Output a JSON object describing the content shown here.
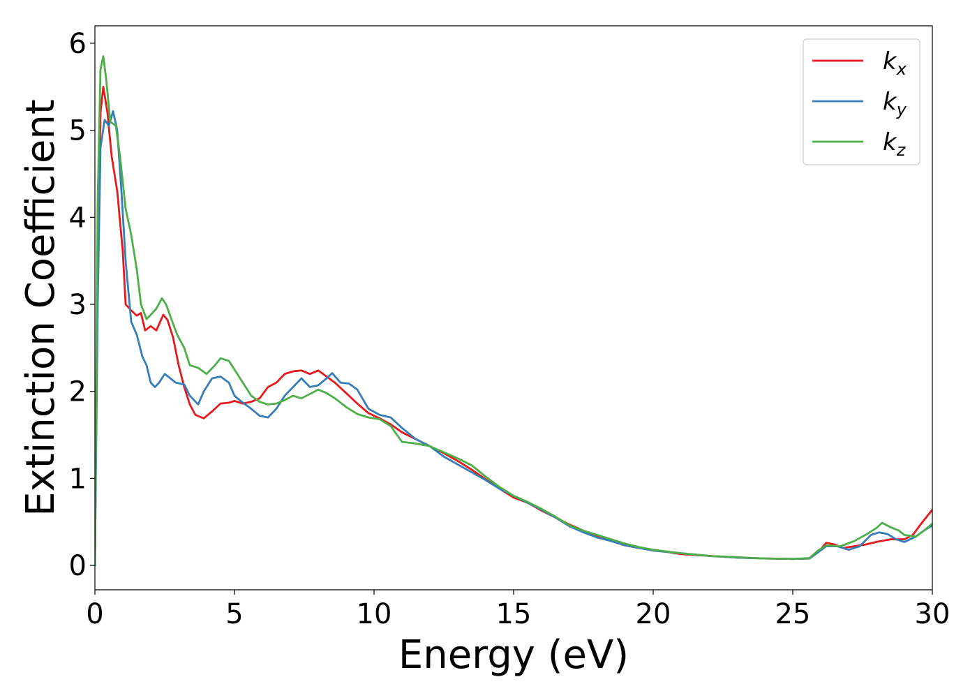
{
  "chart_data": {
    "type": "line",
    "title": "",
    "xlabel": "Energy (eV)",
    "ylabel": "Extinction Coefficient",
    "xlim": [
      0,
      30
    ],
    "ylim": [
      -0.28,
      6.2
    ],
    "xticks": [
      0,
      5,
      10,
      15,
      20,
      25,
      30
    ],
    "yticks": [
      0,
      1,
      2,
      3,
      4,
      5,
      6
    ],
    "grid": false,
    "legend_position": "top-right",
    "series": [
      {
        "name": "k_x",
        "label_base": "k",
        "label_sub": "x",
        "color": "#e41a1c",
        "points": [
          [
            0,
            0
          ],
          [
            0.1,
            3.5
          ],
          [
            0.2,
            5.2
          ],
          [
            0.3,
            5.5
          ],
          [
            0.45,
            5.2
          ],
          [
            0.6,
            4.7
          ],
          [
            0.8,
            4.3
          ],
          [
            1.0,
            3.6
          ],
          [
            1.1,
            3.0
          ],
          [
            1.3,
            2.93
          ],
          [
            1.5,
            2.87
          ],
          [
            1.65,
            2.9
          ],
          [
            1.8,
            2.7
          ],
          [
            2.0,
            2.75
          ],
          [
            2.2,
            2.7
          ],
          [
            2.45,
            2.88
          ],
          [
            2.6,
            2.82
          ],
          [
            2.8,
            2.62
          ],
          [
            3.0,
            2.3
          ],
          [
            3.2,
            2.05
          ],
          [
            3.4,
            1.85
          ],
          [
            3.6,
            1.73
          ],
          [
            3.9,
            1.69
          ],
          [
            4.2,
            1.77
          ],
          [
            4.5,
            1.86
          ],
          [
            4.8,
            1.87
          ],
          [
            5.0,
            1.89
          ],
          [
            5.3,
            1.86
          ],
          [
            5.6,
            1.88
          ],
          [
            5.9,
            1.92
          ],
          [
            6.2,
            2.05
          ],
          [
            6.5,
            2.1
          ],
          [
            6.8,
            2.2
          ],
          [
            7.1,
            2.23
          ],
          [
            7.4,
            2.24
          ],
          [
            7.7,
            2.2
          ],
          [
            8.0,
            2.24
          ],
          [
            8.3,
            2.17
          ],
          [
            8.6,
            2.1
          ],
          [
            9.0,
            1.98
          ],
          [
            9.4,
            1.86
          ],
          [
            9.8,
            1.75
          ],
          [
            10.2,
            1.69
          ],
          [
            10.6,
            1.62
          ],
          [
            11.0,
            1.53
          ],
          [
            11.5,
            1.45
          ],
          [
            12.0,
            1.37
          ],
          [
            12.5,
            1.29
          ],
          [
            13.0,
            1.2
          ],
          [
            13.5,
            1.1
          ],
          [
            14.0,
            0.99
          ],
          [
            14.5,
            0.88
          ],
          [
            15.0,
            0.78
          ],
          [
            15.5,
            0.72
          ],
          [
            16.0,
            0.63
          ],
          [
            16.5,
            0.55
          ],
          [
            17.0,
            0.47
          ],
          [
            17.5,
            0.4
          ],
          [
            18.0,
            0.33
          ],
          [
            18.5,
            0.28
          ],
          [
            19.0,
            0.23
          ],
          [
            19.5,
            0.2
          ],
          [
            20.0,
            0.18
          ],
          [
            21.0,
            0.13
          ],
          [
            22.0,
            0.11
          ],
          [
            23.0,
            0.09
          ],
          [
            24.0,
            0.08
          ],
          [
            25.0,
            0.075
          ],
          [
            25.6,
            0.08
          ],
          [
            25.9,
            0.15
          ],
          [
            26.2,
            0.26
          ],
          [
            26.5,
            0.24
          ],
          [
            26.8,
            0.2
          ],
          [
            27.2,
            0.22
          ],
          [
            27.6,
            0.24
          ],
          [
            28.0,
            0.27
          ],
          [
            28.5,
            0.3
          ],
          [
            29.0,
            0.3
          ],
          [
            29.3,
            0.35
          ],
          [
            29.6,
            0.48
          ],
          [
            30.0,
            0.64
          ]
        ]
      },
      {
        "name": "k_y",
        "label_base": "k",
        "label_sub": "y",
        "color": "#377eb8",
        "points": [
          [
            0,
            0
          ],
          [
            0.1,
            3.0
          ],
          [
            0.2,
            4.8
          ],
          [
            0.35,
            5.12
          ],
          [
            0.5,
            5.05
          ],
          [
            0.65,
            5.22
          ],
          [
            0.8,
            5.0
          ],
          [
            0.95,
            4.3
          ],
          [
            1.1,
            3.5
          ],
          [
            1.3,
            2.8
          ],
          [
            1.5,
            2.65
          ],
          [
            1.7,
            2.4
          ],
          [
            1.85,
            2.3
          ],
          [
            2.0,
            2.1
          ],
          [
            2.15,
            2.05
          ],
          [
            2.3,
            2.1
          ],
          [
            2.5,
            2.2
          ],
          [
            2.7,
            2.15
          ],
          [
            2.9,
            2.1
          ],
          [
            3.2,
            2.08
          ],
          [
            3.4,
            1.95
          ],
          [
            3.7,
            1.85
          ],
          [
            3.9,
            2.0
          ],
          [
            4.2,
            2.15
          ],
          [
            4.5,
            2.17
          ],
          [
            4.8,
            2.1
          ],
          [
            5.0,
            1.95
          ],
          [
            5.3,
            1.87
          ],
          [
            5.6,
            1.8
          ],
          [
            5.9,
            1.72
          ],
          [
            6.2,
            1.7
          ],
          [
            6.5,
            1.8
          ],
          [
            6.8,
            1.95
          ],
          [
            7.1,
            2.05
          ],
          [
            7.4,
            2.15
          ],
          [
            7.7,
            2.05
          ],
          [
            8.0,
            2.07
          ],
          [
            8.3,
            2.15
          ],
          [
            8.5,
            2.21
          ],
          [
            8.8,
            2.1
          ],
          [
            9.1,
            2.09
          ],
          [
            9.4,
            2.02
          ],
          [
            9.8,
            1.8
          ],
          [
            10.2,
            1.73
          ],
          [
            10.6,
            1.7
          ],
          [
            11.0,
            1.58
          ],
          [
            11.5,
            1.45
          ],
          [
            12.0,
            1.37
          ],
          [
            12.5,
            1.25
          ],
          [
            13.0,
            1.16
          ],
          [
            13.5,
            1.07
          ],
          [
            14.0,
            0.98
          ],
          [
            14.5,
            0.88
          ],
          [
            15.0,
            0.8
          ],
          [
            15.5,
            0.72
          ],
          [
            16.0,
            0.64
          ],
          [
            16.5,
            0.55
          ],
          [
            17.0,
            0.45
          ],
          [
            17.5,
            0.38
          ],
          [
            18.0,
            0.32
          ],
          [
            18.5,
            0.28
          ],
          [
            19.0,
            0.23
          ],
          [
            19.5,
            0.2
          ],
          [
            20.0,
            0.17
          ],
          [
            21.0,
            0.14
          ],
          [
            22.0,
            0.11
          ],
          [
            23.0,
            0.09
          ],
          [
            24.0,
            0.08
          ],
          [
            25.0,
            0.075
          ],
          [
            25.6,
            0.08
          ],
          [
            25.9,
            0.15
          ],
          [
            26.2,
            0.22
          ],
          [
            26.6,
            0.22
          ],
          [
            27.0,
            0.18
          ],
          [
            27.4,
            0.22
          ],
          [
            27.8,
            0.35
          ],
          [
            28.1,
            0.38
          ],
          [
            28.4,
            0.36
          ],
          [
            28.7,
            0.3
          ],
          [
            29.0,
            0.27
          ],
          [
            29.4,
            0.33
          ],
          [
            29.7,
            0.4
          ],
          [
            30.0,
            0.46
          ]
        ]
      },
      {
        "name": "k_z",
        "label_base": "k",
        "label_sub": "z",
        "color": "#4daf4a",
        "points": [
          [
            0,
            0
          ],
          [
            0.1,
            4.2
          ],
          [
            0.2,
            5.7
          ],
          [
            0.3,
            5.85
          ],
          [
            0.4,
            5.6
          ],
          [
            0.55,
            5.1
          ],
          [
            0.75,
            5.05
          ],
          [
            0.9,
            4.7
          ],
          [
            1.1,
            4.1
          ],
          [
            1.3,
            3.8
          ],
          [
            1.5,
            3.4
          ],
          [
            1.65,
            3.0
          ],
          [
            1.85,
            2.83
          ],
          [
            2.0,
            2.88
          ],
          [
            2.2,
            2.95
          ],
          [
            2.4,
            3.07
          ],
          [
            2.55,
            3.0
          ],
          [
            2.75,
            2.82
          ],
          [
            2.95,
            2.65
          ],
          [
            3.2,
            2.5
          ],
          [
            3.4,
            2.3
          ],
          [
            3.7,
            2.27
          ],
          [
            4.0,
            2.2
          ],
          [
            4.3,
            2.3
          ],
          [
            4.5,
            2.38
          ],
          [
            4.8,
            2.35
          ],
          [
            5.0,
            2.25
          ],
          [
            5.3,
            2.1
          ],
          [
            5.6,
            1.95
          ],
          [
            5.9,
            1.88
          ],
          [
            6.2,
            1.85
          ],
          [
            6.5,
            1.86
          ],
          [
            6.8,
            1.9
          ],
          [
            7.1,
            1.95
          ],
          [
            7.4,
            1.92
          ],
          [
            7.7,
            1.97
          ],
          [
            8.0,
            2.02
          ],
          [
            8.3,
            1.98
          ],
          [
            8.6,
            1.92
          ],
          [
            9.0,
            1.82
          ],
          [
            9.4,
            1.74
          ],
          [
            9.8,
            1.7
          ],
          [
            10.2,
            1.68
          ],
          [
            10.6,
            1.6
          ],
          [
            11.0,
            1.42
          ],
          [
            11.5,
            1.4
          ],
          [
            12.0,
            1.37
          ],
          [
            12.5,
            1.3
          ],
          [
            13.0,
            1.23
          ],
          [
            13.5,
            1.15
          ],
          [
            14.0,
            1.02
          ],
          [
            14.5,
            0.9
          ],
          [
            15.0,
            0.8
          ],
          [
            15.5,
            0.73
          ],
          [
            16.0,
            0.65
          ],
          [
            16.5,
            0.56
          ],
          [
            17.0,
            0.46
          ],
          [
            17.5,
            0.4
          ],
          [
            18.0,
            0.35
          ],
          [
            18.5,
            0.3
          ],
          [
            19.0,
            0.25
          ],
          [
            19.5,
            0.21
          ],
          [
            20.0,
            0.18
          ],
          [
            21.0,
            0.14
          ],
          [
            22.0,
            0.11
          ],
          [
            23.0,
            0.095
          ],
          [
            24.0,
            0.08
          ],
          [
            25.0,
            0.075
          ],
          [
            25.6,
            0.085
          ],
          [
            25.9,
            0.17
          ],
          [
            26.2,
            0.23
          ],
          [
            26.7,
            0.22
          ],
          [
            27.2,
            0.28
          ],
          [
            27.6,
            0.35
          ],
          [
            28.0,
            0.43
          ],
          [
            28.2,
            0.49
          ],
          [
            28.5,
            0.44
          ],
          [
            28.8,
            0.4
          ],
          [
            29.0,
            0.35
          ],
          [
            29.4,
            0.33
          ],
          [
            29.7,
            0.4
          ],
          [
            30.0,
            0.48
          ]
        ]
      }
    ]
  }
}
